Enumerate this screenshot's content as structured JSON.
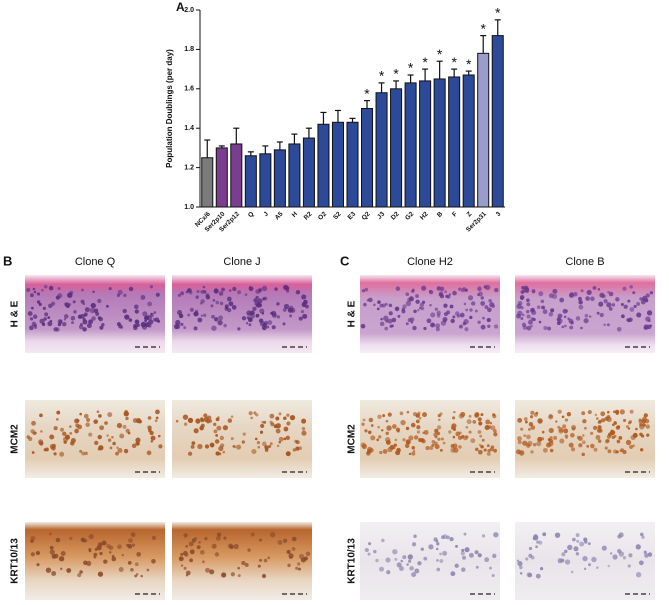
{
  "chart_data": {
    "type": "bar",
    "label": "A",
    "y_label": "Population Doublings (per day)",
    "categories": [
      "NCx/6",
      "Ser2p10",
      "Ser2p12",
      "Q",
      "J",
      "A5",
      "H",
      "R2",
      "O2",
      "S2",
      "E3",
      "Q2",
      "J3",
      "D2",
      "G2",
      "H2",
      "B",
      "F",
      "Z",
      "Ser2p31",
      "3"
    ],
    "values": [
      1.25,
      1.3,
      1.32,
      1.26,
      1.27,
      1.29,
      1.32,
      1.35,
      1.42,
      1.43,
      1.43,
      1.5,
      1.58,
      1.6,
      1.63,
      1.64,
      1.65,
      1.66,
      1.67,
      1.78,
      1.87
    ],
    "errors": [
      0.09,
      0.01,
      0.08,
      0.02,
      0.04,
      0.04,
      0.05,
      0.05,
      0.06,
      0.06,
      0.02,
      0.04,
      0.05,
      0.04,
      0.04,
      0.06,
      0.09,
      0.04,
      0.02,
      0.09,
      0.08
    ],
    "colors": [
      "#7b7b7b",
      "#7a3d8f",
      "#7a3d8f",
      "#2d4a9a",
      "#2d4a9a",
      "#2d4a9a",
      "#2d4a9a",
      "#2d4a9a",
      "#2d4a9a",
      "#2d4a9a",
      "#2d4a9a",
      "#2d4a9a",
      "#2d4a9a",
      "#2d4a9a",
      "#2d4a9a",
      "#2d4a9a",
      "#2d4a9a",
      "#2d4a9a",
      "#2d4a9a",
      "#9a9ccc",
      "#2d4a9a"
    ],
    "annotations": [
      {
        "text": "*",
        "category": "Q2"
      },
      {
        "text": "*",
        "category": "J3"
      },
      {
        "text": "*",
        "category": "D2"
      },
      {
        "text": "*",
        "category": "G2"
      },
      {
        "text": "*",
        "category": "H2"
      },
      {
        "text": "*",
        "category": "B"
      },
      {
        "text": "*",
        "category": "F"
      },
      {
        "text": "*",
        "category": "Z"
      },
      {
        "text": "*",
        "category": "Ser2p31"
      },
      {
        "text": "*",
        "category": "3"
      }
    ],
    "ylim": [
      1.0,
      2.0
    ],
    "yticks": [
      {
        "value": 1.0,
        "label": "1.0"
      },
      {
        "value": 1.2,
        "label": "1.2"
      },
      {
        "value": 1.4,
        "label": "1.4"
      },
      {
        "value": 1.6,
        "label": "1.6"
      },
      {
        "value": 1.8,
        "label": "1.8"
      },
      {
        "value": 2.0,
        "label": "2.0"
      }
    ]
  },
  "panels": [
    {
      "label": "B",
      "columns": [
        "Clone Q",
        "Clone J"
      ],
      "rows": [
        "H & E",
        "MCM2",
        "KRT10/13"
      ]
    },
    {
      "label": "C",
      "columns": [
        "Clone H2",
        "Clone B"
      ],
      "rows": [
        "H & E",
        "MCM2",
        "KRT10/13"
      ]
    }
  ]
}
